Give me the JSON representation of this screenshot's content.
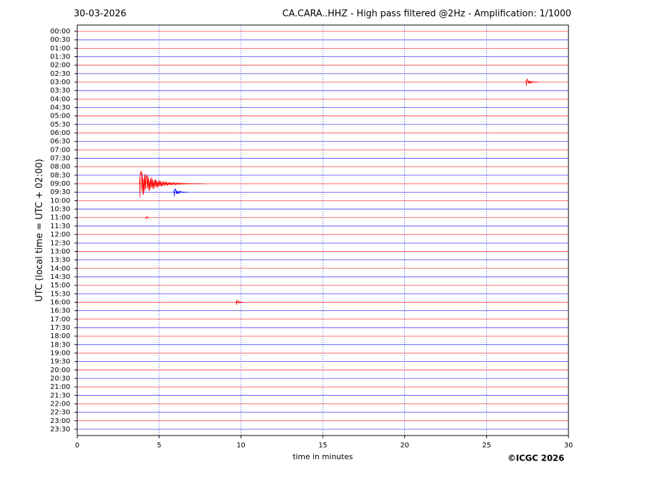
{
  "chart_data": {
    "type": "helicorder",
    "date": "30-03-2026",
    "title": "CA.CARA..HHZ - High pass filtered @2Hz - Amplification: 1/1000",
    "y_label": "UTC (local time = UTC + 02:00)",
    "x_label": "time in minutes",
    "credit": "©ICGC 2026",
    "categories": [
      "00:00",
      "00:30",
      "01:00",
      "01:30",
      "02:00",
      "02:30",
      "03:00",
      "03:30",
      "04:00",
      "04:30",
      "05:00",
      "05:30",
      "06:00",
      "06:30",
      "07:00",
      "07:30",
      "08:00",
      "08:30",
      "09:00",
      "09:30",
      "10:00",
      "10:30",
      "11:00",
      "11:30",
      "12:00",
      "12:30",
      "13:00",
      "13:30",
      "14:00",
      "14:30",
      "15:00",
      "15:30",
      "16:00",
      "16:30",
      "17:00",
      "17:30",
      "18:00",
      "18:30",
      "19:00",
      "19:30",
      "20:00",
      "20:30",
      "21:00",
      "21:30",
      "22:00",
      "22:30",
      "23:00",
      "23:30"
    ],
    "colors": [
      "#ff0000",
      "#0000ff"
    ],
    "xlim": [
      0,
      30
    ],
    "xticks": [
      0,
      5,
      10,
      15,
      20,
      25,
      30
    ],
    "grid": true,
    "events": [
      {
        "row": "09:00",
        "start": 3.8,
        "end": 7.7
      },
      {
        "row": "09:30",
        "start": 5.9,
        "end": 6.8
      },
      {
        "row": "03:00",
        "start": 27.4,
        "end": 28.2
      },
      {
        "row": "11:00",
        "start": 4.2,
        "end": 4.4
      },
      {
        "row": "16:00",
        "start": 9.7,
        "end": 10.2
      }
    ]
  }
}
